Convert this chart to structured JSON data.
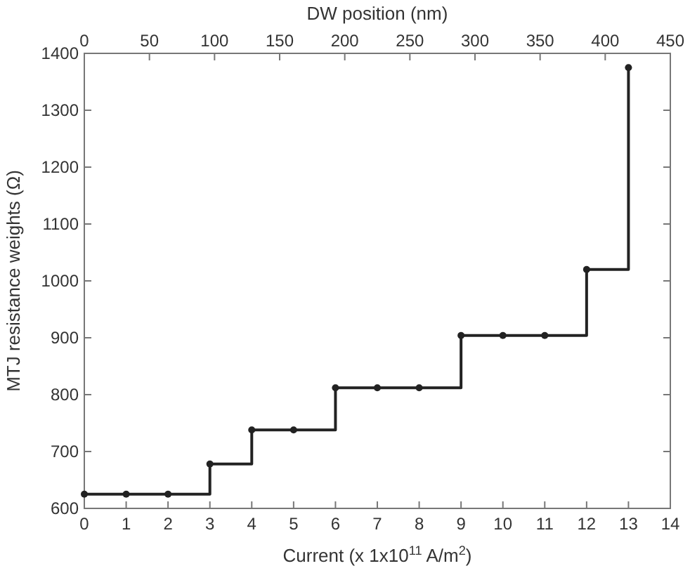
{
  "chart_data": {
    "type": "step",
    "xlabel": "Current (x 1x10$^{11}$ A/m$^{2}$)",
    "ylabel": "MTJ resistance weights (Ω)",
    "x2label": "DW position (nm)",
    "x": [
      0,
      1,
      2,
      3,
      4,
      5,
      6,
      7,
      8,
      9,
      10,
      11,
      12,
      13
    ],
    "series": [
      {
        "color": "#222222",
        "values": [
          625,
          625,
          625,
          678,
          738,
          738,
          812,
          812,
          812,
          904,
          904,
          904,
          1020,
          1375
        ]
      }
    ],
    "xlim": [
      0,
      14
    ],
    "xticks": [
      0,
      1,
      2,
      3,
      4,
      5,
      6,
      7,
      8,
      9,
      10,
      11,
      12,
      13,
      14
    ],
    "x2lim": [
      0,
      450
    ],
    "x2ticks": [
      0,
      50,
      100,
      150,
      200,
      250,
      300,
      350,
      400,
      450
    ],
    "ylim": [
      600,
      1400
    ],
    "yticks": [
      600,
      700,
      800,
      900,
      1000,
      1100,
      1200,
      1300,
      1400
    ],
    "marker": "circle",
    "line_style": "solid"
  }
}
